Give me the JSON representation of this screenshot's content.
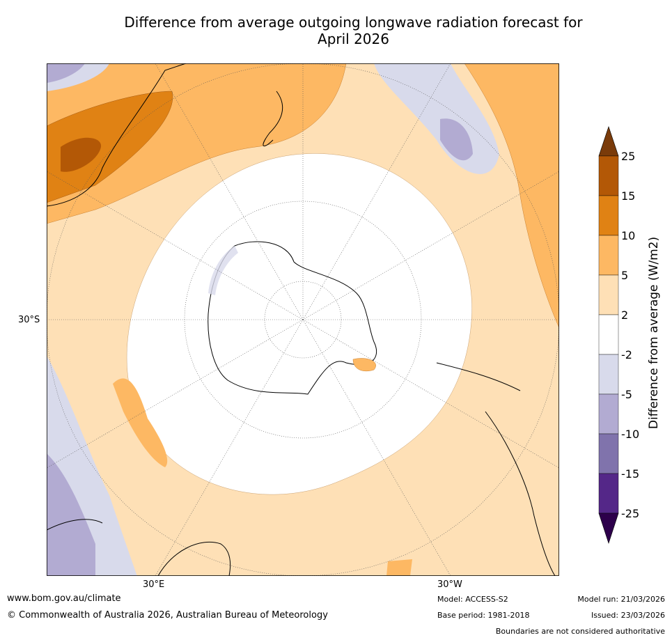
{
  "title": {
    "line1": "Difference from average outgoing longwave radiation forecast for",
    "line2": "April 2026"
  },
  "map": {
    "lat_label": "30°S",
    "lon_labels": [
      "30°E",
      "30°W"
    ]
  },
  "colorbar": {
    "label": "Difference from average (W/m2)",
    "ticks": [
      "25",
      "15",
      "10",
      "5",
      "2",
      "-2",
      "-5",
      "-10",
      "-15",
      "-25"
    ],
    "colors": {
      "gt25": "#7a3b0a",
      "15_25": "#b35806",
      "10_15": "#e08214",
      "5_10": "#fdb863",
      "2_5": "#fee0b6",
      "m2_2": "#ffffff",
      "m5_m2": "#d8daeb",
      "m10_m5": "#b2abd2",
      "m15_m10": "#8073ac",
      "m25_m15": "#542788",
      "lt_m25": "#2d004b"
    }
  },
  "footer": {
    "url": "www.bom.gov.au/climate",
    "copyright": "© Commonwealth of Australia 2026, Australian Bureau of Meteorology",
    "model": "Model: ACCESS-S2",
    "base_period": "Base period: 1981-2018",
    "model_run": "Model run: 21/03/2026",
    "issued": "Issued: 23/03/2026",
    "disclaimer": "Boundaries are not considered authoritative"
  }
}
